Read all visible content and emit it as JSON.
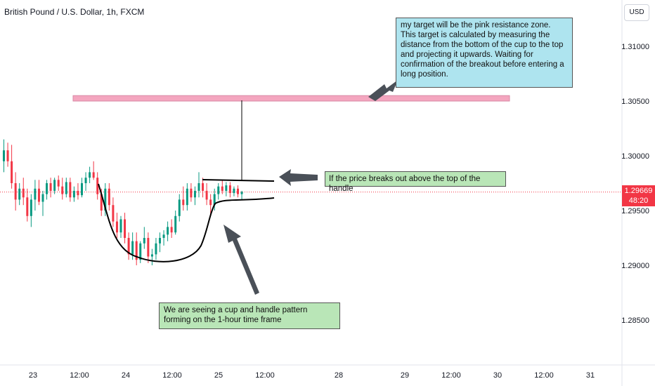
{
  "header": {
    "title": "British Pound / U.S. Dollar, 1h, FXCM"
  },
  "price_axis": {
    "currency_label": "USD"
  },
  "current_price": {
    "value": "1.29669",
    "countdown": "48:20"
  },
  "annotations": {
    "target": "my target will be the pink resistance zone. This target is calculated by measuring the distance from the bottom of the cup to the top and projecting it upwards. Waiting for confirmation of the breakout before entering a long position.",
    "breakout": "If the price breaks out above the top of the handle",
    "cup": "We are seeing a cup and handle pattern forming on  the 1-hour time frame"
  },
  "colors": {
    "up": "#089981",
    "down": "#f23645",
    "resistance_zone": "#f4a6bf",
    "target_note_bg": "#aee4ef",
    "pattern_note_bg": "#b9e6b7"
  },
  "chart_data": {
    "type": "candlestick",
    "symbol": "British Pound / U.S. Dollar",
    "timeframe": "1h",
    "source": "FXCM",
    "y_ticks": [
      "1.31000",
      "1.30500",
      "1.30000",
      "1.29500",
      "1.29000",
      "1.28500"
    ],
    "x_ticks": [
      "23",
      "12:00",
      "24",
      "12:00",
      "25",
      "12:00",
      "28",
      "29",
      "12:00",
      "30",
      "12:00",
      "31"
    ],
    "resistance_zone": [
      1.305,
      1.3055
    ],
    "current_price": 1.29669,
    "candles": [
      [
        1.2995,
        1.3015,
        1.2985,
        1.3005
      ],
      [
        1.3005,
        1.3012,
        1.299,
        1.2995
      ],
      [
        1.2995,
        1.301,
        1.297,
        1.2975
      ],
      [
        1.2975,
        1.2985,
        1.295,
        1.296
      ],
      [
        1.296,
        1.2975,
        1.2955,
        1.297
      ],
      [
        1.297,
        1.298,
        1.2955,
        1.2962
      ],
      [
        1.2962,
        1.297,
        1.294,
        1.2945
      ],
      [
        1.2945,
        1.2965,
        1.2935,
        1.296
      ],
      [
        1.296,
        1.2978,
        1.295,
        1.297
      ],
      [
        1.297,
        1.2978,
        1.2955,
        1.2958
      ],
      [
        1.2958,
        1.2968,
        1.2945,
        1.2965
      ],
      [
        1.2965,
        1.2978,
        1.296,
        1.2975
      ],
      [
        1.2975,
        1.298,
        1.2962,
        1.2968
      ],
      [
        1.2968,
        1.298,
        1.2965,
        1.2978
      ],
      [
        1.2978,
        1.2982,
        1.2968,
        1.2972
      ],
      [
        1.2972,
        1.298,
        1.296,
        1.2965
      ],
      [
        1.2965,
        1.298,
        1.2962,
        1.2976
      ],
      [
        1.2976,
        1.298,
        1.2958,
        1.2962
      ],
      [
        1.2962,
        1.2972,
        1.2958,
        1.2968
      ],
      [
        1.2968,
        1.2975,
        1.296,
        1.2964
      ],
      [
        1.2964,
        1.298,
        1.2962,
        1.2975
      ],
      [
        1.2975,
        1.2985,
        1.2968,
        1.298
      ],
      [
        1.298,
        1.299,
        1.2975,
        1.2985
      ],
      [
        1.2985,
        1.2995,
        1.2978,
        1.298
      ],
      [
        1.298,
        1.2985,
        1.296,
        1.2965
      ],
      [
        1.2965,
        1.297,
        1.2945,
        1.295
      ],
      [
        1.295,
        1.2975,
        1.2945,
        1.297
      ],
      [
        1.297,
        1.2975,
        1.295,
        1.2955
      ],
      [
        1.2955,
        1.2962,
        1.2935,
        1.294
      ],
      [
        1.294,
        1.2948,
        1.2925,
        1.293
      ],
      [
        1.293,
        1.2945,
        1.2925,
        1.2942
      ],
      [
        1.2942,
        1.2948,
        1.292,
        1.2925
      ],
      [
        1.2925,
        1.293,
        1.2905,
        1.291
      ],
      [
        1.291,
        1.293,
        1.2905,
        1.2922
      ],
      [
        1.2922,
        1.293,
        1.29,
        1.2905
      ],
      [
        1.2905,
        1.2922,
        1.2902,
        1.292
      ],
      [
        1.292,
        1.2935,
        1.2915,
        1.2925
      ],
      [
        1.2925,
        1.293,
        1.2902,
        1.2908
      ],
      [
        1.2908,
        1.2915,
        1.29,
        1.291
      ],
      [
        1.291,
        1.2925,
        1.2905,
        1.292
      ],
      [
        1.292,
        1.293,
        1.2912,
        1.2925
      ],
      [
        1.2925,
        1.2932,
        1.2918,
        1.2928
      ],
      [
        1.2928,
        1.294,
        1.2922,
        1.2935
      ],
      [
        1.2935,
        1.2942,
        1.2925,
        1.293
      ],
      [
        1.293,
        1.295,
        1.2928,
        1.2945
      ],
      [
        1.2945,
        1.2965,
        1.294,
        1.296
      ],
      [
        1.296,
        1.2972,
        1.295,
        1.2955
      ],
      [
        1.2955,
        1.2975,
        1.295,
        1.297
      ],
      [
        1.297,
        1.2975,
        1.2958,
        1.2962
      ],
      [
        1.2962,
        1.2972,
        1.2955,
        1.2968
      ],
      [
        1.2968,
        1.2985,
        1.2962,
        1.2975
      ],
      [
        1.2975,
        1.298,
        1.2962,
        1.2968
      ],
      [
        1.2968,
        1.2975,
        1.2955,
        1.296
      ],
      [
        1.296,
        1.2965,
        1.2945,
        1.2955
      ],
      [
        1.2955,
        1.297,
        1.295,
        1.2965
      ],
      [
        1.2965,
        1.2975,
        1.296,
        1.2972
      ],
      [
        1.2972,
        1.2978,
        1.2965,
        1.2968
      ],
      [
        1.2968,
        1.2976,
        1.2963,
        1.2973
      ],
      [
        1.2973,
        1.2976,
        1.2962,
        1.2966
      ],
      [
        1.2966,
        1.2972,
        1.2963,
        1.297
      ],
      [
        1.297,
        1.2973,
        1.2962,
        1.2965
      ],
      [
        1.2965,
        1.2968,
        1.296,
        1.2967
      ]
    ]
  }
}
